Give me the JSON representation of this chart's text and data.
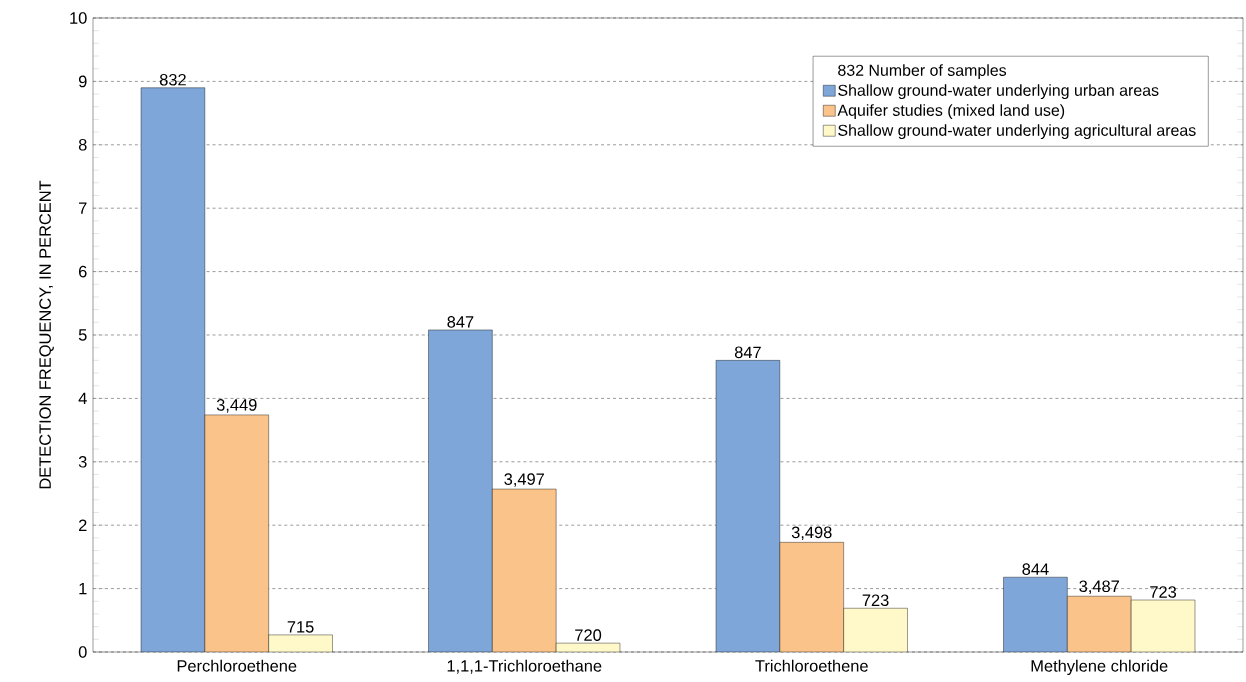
{
  "chart_data": {
    "type": "bar",
    "ylabel": "DETECTION FREQUENCY, IN PERCENT",
    "legend_title": "832 Number of samples",
    "categories": [
      "Perchloroethene",
      "1,1,1-Trichloroethane",
      "Trichloroethene",
      "Methylene chloride"
    ],
    "series": [
      {
        "name": "Shallow ground-water underlying urban areas",
        "color": "#7ea6d8",
        "values": [
          8.9,
          5.08,
          4.6,
          1.18
        ]
      },
      {
        "name": "Aquifer studies (mixed land use)",
        "color": "#fac38a",
        "values": [
          3.74,
          2.57,
          1.73,
          0.88
        ]
      },
      {
        "name": "Shallow ground-water underlying agricultural areas",
        "color": "#fff8c8",
        "values": [
          0.27,
          0.14,
          0.69,
          0.82
        ]
      }
    ],
    "annotations": [
      "832",
      "847",
      "847",
      "844",
      "3,449",
      "3,497",
      "3,498",
      "3,487",
      "715",
      "720",
      "723",
      "723"
    ],
    "ylim": [
      0,
      10
    ],
    "yticks": [
      0,
      1,
      2,
      3,
      4,
      5,
      6,
      7,
      8,
      9,
      10
    ],
    "grid": "y",
    "legend": "top right"
  }
}
